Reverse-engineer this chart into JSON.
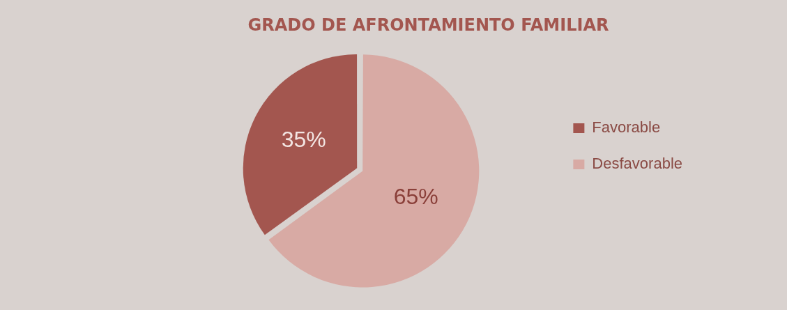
{
  "chart_data": {
    "type": "pie",
    "title": "GRADO DE AFRONTAMIENTO FAMILIAR",
    "categories": [
      "Favorable",
      "Desfavorable"
    ],
    "values": [
      35,
      65
    ],
    "colors": [
      "#a3564f",
      "#d8aaa4"
    ],
    "value_labels": [
      "35%",
      "65%"
    ],
    "legend": "right"
  }
}
